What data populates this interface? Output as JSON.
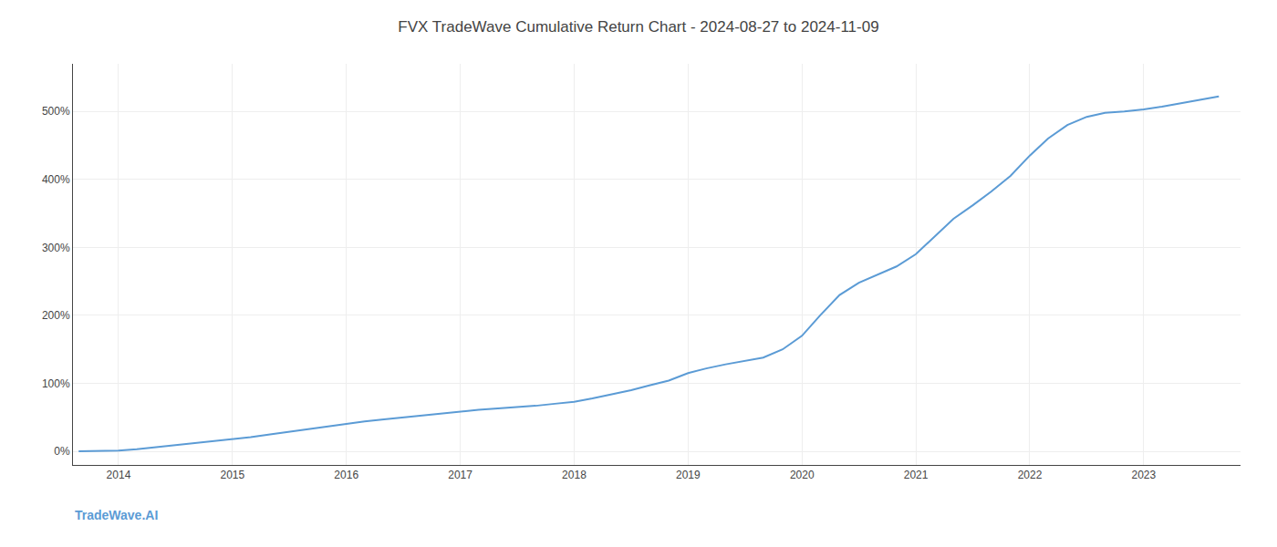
{
  "chart_data": {
    "type": "line",
    "title": "FVX TradeWave Cumulative Return Chart - 2024-08-27 to 2024-11-09",
    "annotations": [
      "TradeWave.AI"
    ],
    "color": "#5b9bd5",
    "grid": true,
    "x": [
      2013.65,
      2014.0,
      2014.16,
      2014.33,
      2014.5,
      2014.66,
      2014.83,
      2015.0,
      2015.16,
      2015.33,
      2015.5,
      2015.66,
      2015.83,
      2016.0,
      2016.16,
      2016.33,
      2016.5,
      2016.66,
      2016.83,
      2017.0,
      2017.16,
      2017.33,
      2017.5,
      2017.66,
      2017.83,
      2018.0,
      2018.16,
      2018.33,
      2018.5,
      2018.66,
      2018.83,
      2019.0,
      2019.16,
      2019.33,
      2019.5,
      2019.66,
      2019.83,
      2020.0,
      2020.16,
      2020.33,
      2020.5,
      2020.66,
      2020.83,
      2021.0,
      2021.16,
      2021.33,
      2021.5,
      2021.66,
      2021.83,
      2022.0,
      2022.16,
      2022.33,
      2022.5,
      2022.66,
      2022.83,
      2023.0,
      2023.16,
      2023.33,
      2023.5,
      2023.66
    ],
    "values": [
      0,
      1,
      3,
      6,
      9,
      12,
      15,
      18,
      21,
      25,
      29,
      33,
      37,
      41,
      44,
      47,
      50,
      53,
      55,
      58,
      61,
      63,
      65,
      67,
      70,
      73,
      78,
      84,
      90,
      97,
      104,
      115,
      122,
      128,
      133,
      138,
      150,
      170,
      200,
      230,
      248,
      260,
      272,
      290,
      315,
      342,
      362,
      382,
      405,
      435,
      460,
      480,
      492,
      498,
      500,
      503,
      507,
      512,
      518,
      522
    ],
    "xlim": [
      2013.6,
      2023.85
    ],
    "xticks": [
      2014,
      2015,
      2016,
      2017,
      2018,
      2019,
      2020,
      2021,
      2022,
      2023
    ],
    "ylim": [
      -20,
      570
    ],
    "yticks": [
      {
        "value": 0,
        "label": "0%"
      },
      {
        "value": 100,
        "label": "100%"
      },
      {
        "value": 200,
        "label": "200%"
      },
      {
        "value": 300,
        "label": "300%"
      },
      {
        "value": 400,
        "label": "400%"
      },
      {
        "value": 500,
        "label": "500%"
      }
    ]
  }
}
